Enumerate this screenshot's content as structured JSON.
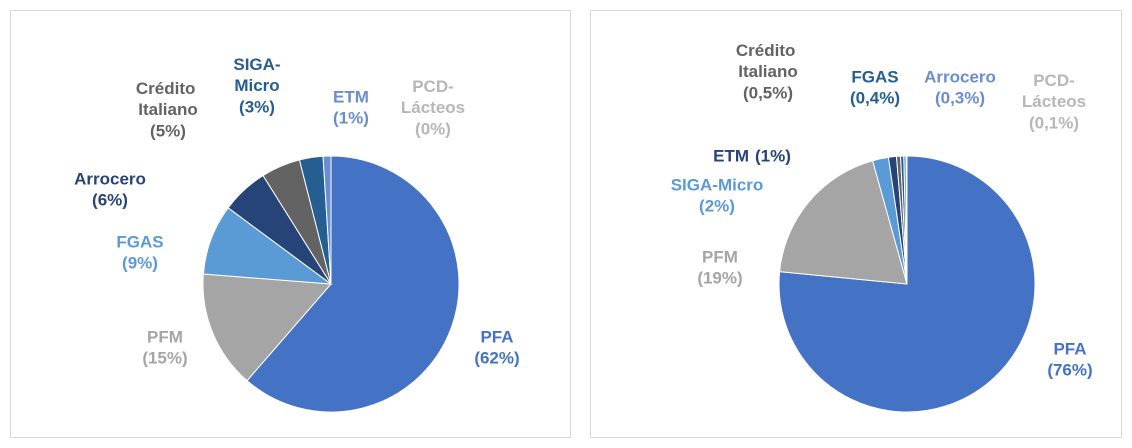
{
  "chart_data": [
    {
      "type": "pie",
      "categories": [
        "PFA",
        "PFM",
        "FGAS",
        "Arrocero",
        "Crédito Italiano",
        "SIGA-Micro",
        "ETM",
        "PCD-Lácteos"
      ],
      "values": [
        62,
        15,
        9,
        6,
        5,
        3,
        1,
        0
      ],
      "value_labels": [
        "(62%)",
        "(15%)",
        "(9%)",
        "(6%)",
        "(5%)",
        "(3%)",
        "(1%)",
        "(0%)"
      ],
      "colors": [
        "#4472c4",
        "#a5a5a5",
        "#5b9bd5",
        "#264478",
        "#636363",
        "#255e91",
        "#698ed0",
        "#b7b7b7"
      ]
    },
    {
      "type": "pie",
      "categories": [
        "PFA",
        "PFM",
        "SIGA-Micro",
        "ETM",
        "Crédito Italiano",
        "FGAS",
        "Arrocero",
        "PCD-Lácteos"
      ],
      "values": [
        76,
        19,
        2,
        1,
        0.5,
        0.4,
        0.3,
        0.1
      ],
      "value_labels": [
        "(76%)",
        "(19%)",
        "(2%)",
        "(1%)",
        "(0,5%)",
        "(0,4%)",
        "(0,3%)",
        "(0,1%)"
      ],
      "colors": [
        "#4472c4",
        "#a5a5a5",
        "#5b9bd5",
        "#264478",
        "#636363",
        "#255e91",
        "#698ed0",
        "#b7b7b7"
      ]
    }
  ]
}
